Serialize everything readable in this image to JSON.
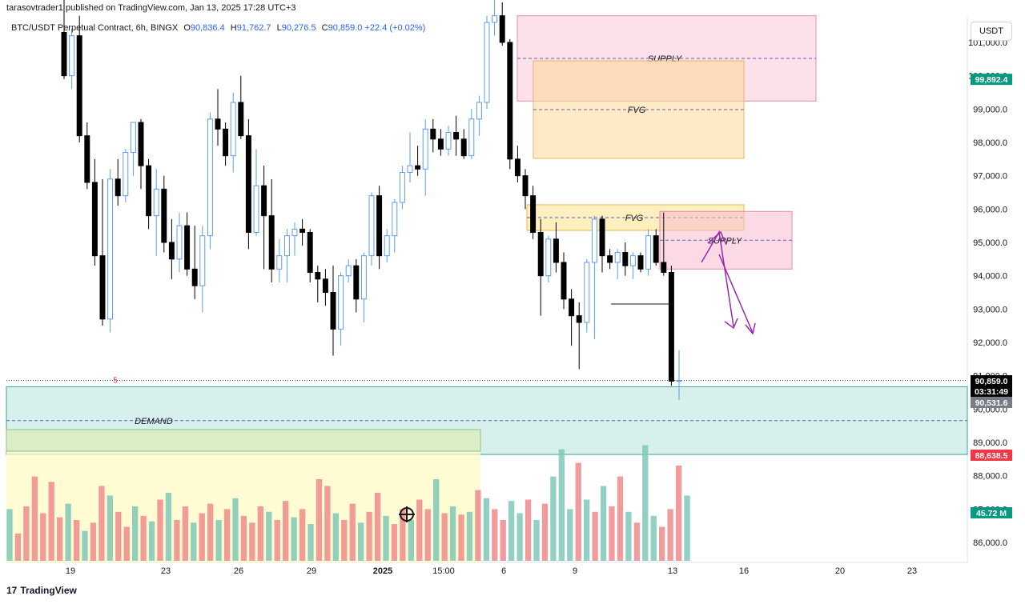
{
  "header": {
    "published_line": "tarasovtrader1 published on TradingView.com, Jan 13, 2025 17:28 UTC+3",
    "symbol_title": "BTC/USDT Perpetual Contract, 6h, BINGX",
    "o_label": "O",
    "o_value": "90,836.4",
    "h_label": "H",
    "h_value": "91,762.7",
    "l_label": "L",
    "l_value": "90,276.5",
    "c_label": "C",
    "c_value": "90,859.0",
    "change": "+22.4 (+0.02%)"
  },
  "currency_button": "USDT",
  "footer": {
    "logo": "17",
    "brand": "TradingView"
  },
  "colors": {
    "up": "#5b9cf6",
    "down": "#000000",
    "vol_up": "#7fc8b8",
    "vol_down": "#ef8b8b",
    "supply": "#f8bbd0",
    "fvg": "#fde9a8",
    "demand": "#b7e4dc",
    "arrow": "#9c27b0"
  },
  "chart_data": {
    "type": "candlestick",
    "y_axis_ticks": [
      "101,000.0",
      "100,000.0",
      "99,000.0",
      "98,000.0",
      "97,000.0",
      "96,000.0",
      "95,000.0",
      "94,000.0",
      "93,000.0",
      "92,000.0",
      "91,000.0",
      "90,000.0",
      "89,000.0",
      "88,000.0",
      "87,000.0",
      "86,000.0"
    ],
    "x_axis_ticks": [
      "19",
      "23",
      "26",
      "29",
      "2025",
      "15:00",
      "6",
      "9",
      "13",
      "16",
      "20",
      "23"
    ],
    "price_labels": [
      {
        "text": "99,892.4",
        "color": "#089981"
      },
      {
        "text": "90,859.0",
        "color": "#000000"
      },
      {
        "text": "03:31:49",
        "color": "#000000"
      },
      {
        "text": "90,531.6",
        "color": "#787b86"
      },
      {
        "text": "88,638.5",
        "color": "#f23645"
      },
      {
        "text": "45.72 M",
        "color": "#089981"
      }
    ],
    "zones": [
      {
        "label": "SUPPLY",
        "kind": "supply",
        "top": 101800,
        "bottom": 99240
      },
      {
        "label": "FVG",
        "kind": "fvg",
        "top": 100450,
        "bottom": 97520
      },
      {
        "label": "FVG",
        "kind": "fvg",
        "top": 96130,
        "bottom": 95360
      },
      {
        "label": "SUPPLY",
        "kind": "supply",
        "top": 95930,
        "bottom": 94200
      },
      {
        "label": "DEMAND",
        "kind": "demand",
        "top": 90670,
        "bottom": 88638
      }
    ],
    "marker_label": "5",
    "candles": [
      [
        101300,
        102500,
        99900,
        100000
      ],
      [
        100000,
        101400,
        99600,
        101200
      ],
      [
        101200,
        101800,
        98000,
        98200
      ],
      [
        98200,
        98600,
        96600,
        96800
      ],
      [
        96800,
        97500,
        94300,
        94600
      ],
      [
        94600,
        96900,
        92500,
        92700
      ],
      [
        92700,
        97200,
        92300,
        96900
      ],
      [
        96900,
        97500,
        96100,
        96400
      ],
      [
        96400,
        97800,
        96200,
        97700
      ],
      [
        97700,
        98600,
        97000,
        98600
      ],
      [
        98600,
        98700,
        96600,
        97300
      ],
      [
        97300,
        97500,
        95400,
        95800
      ],
      [
        95800,
        97200,
        94600,
        96600
      ],
      [
        96600,
        97000,
        94700,
        95000
      ],
      [
        95000,
        95700,
        93900,
        94500
      ],
      [
        94500,
        95900,
        94100,
        95500
      ],
      [
        95500,
        95900,
        94000,
        94200
      ],
      [
        94200,
        95500,
        93300,
        93700
      ],
      [
        93700,
        95500,
        92900,
        95200
      ],
      [
        95200,
        98900,
        94800,
        98700
      ],
      [
        98700,
        99600,
        97900,
        98400
      ],
      [
        98400,
        98600,
        97300,
        97600
      ],
      [
        97600,
        99500,
        97100,
        99200
      ],
      [
        99200,
        100000,
        98100,
        98200
      ],
      [
        98200,
        98700,
        94800,
        95300
      ],
      [
        95300,
        97800,
        95200,
        96700
      ],
      [
        96700,
        97300,
        94200,
        95800
      ],
      [
        95800,
        96900,
        93800,
        94200
      ],
      [
        94200,
        95100,
        93800,
        94600
      ],
      [
        94600,
        95400,
        93800,
        95200
      ],
      [
        95200,
        95600,
        94600,
        95400
      ],
      [
        95400,
        95700,
        94900,
        95300
      ],
      [
        95300,
        95400,
        93800,
        94100
      ],
      [
        94100,
        94300,
        93200,
        93900
      ],
      [
        93900,
        94200,
        93100,
        93500
      ],
      [
        93500,
        94300,
        91600,
        92400
      ],
      [
        92400,
        94100,
        91900,
        94000
      ],
      [
        94000,
        94500,
        93800,
        94300
      ],
      [
        94300,
        94500,
        92900,
        93300
      ],
      [
        93300,
        94700,
        92600,
        94600
      ],
      [
        94600,
        96500,
        94300,
        96400
      ],
      [
        96400,
        96700,
        94200,
        94600
      ],
      [
        94600,
        95400,
        94400,
        95200
      ],
      [
        95200,
        96300,
        94700,
        96200
      ],
      [
        96200,
        97300,
        96000,
        97100
      ],
      [
        97100,
        98300,
        96800,
        97300
      ],
      [
        97300,
        97900,
        97000,
        97200
      ],
      [
        97200,
        98700,
        96400,
        98400
      ],
      [
        98400,
        98700,
        97700,
        98100
      ],
      [
        98100,
        98400,
        97600,
        97800
      ],
      [
        97800,
        98500,
        97600,
        98300
      ],
      [
        98300,
        98800,
        97600,
        98100
      ],
      [
        98100,
        98400,
        97500,
        97600
      ],
      [
        97600,
        99000,
        97500,
        98700
      ],
      [
        98700,
        99400,
        98200,
        99200
      ],
      [
        99200,
        101800,
        99000,
        101600
      ],
      [
        101600,
        102600,
        101200,
        101800
      ],
      [
        101800,
        102200,
        100900,
        101000
      ],
      [
        101000,
        101100,
        97200,
        97500
      ],
      [
        97500,
        97900,
        96800,
        97000
      ],
      [
        97000,
        97200,
        96000,
        96400
      ],
      [
        96400,
        96700,
        95100,
        95300
      ],
      [
        95300,
        95700,
        92800,
        94000
      ],
      [
        94000,
        95200,
        93800,
        95100
      ],
      [
        95100,
        95600,
        94100,
        94400
      ],
      [
        94400,
        94700,
        93000,
        93300
      ],
      [
        93300,
        93600,
        91900,
        92800
      ],
      [
        92800,
        93200,
        91200,
        92600
      ],
      [
        92600,
        94500,
        92300,
        94400
      ],
      [
        94400,
        95800,
        92100,
        95700
      ],
      [
        95700,
        95800,
        94100,
        94600
      ],
      [
        94600,
        94800,
        94200,
        94400
      ],
      [
        94400,
        94800,
        93900,
        94700
      ],
      [
        94700,
        95000,
        94000,
        94300
      ],
      [
        94300,
        94700,
        93900,
        94600
      ],
      [
        94600,
        94700,
        94100,
        94200
      ],
      [
        94200,
        95400,
        94000,
        95200
      ],
      [
        95200,
        95400,
        94300,
        94400
      ],
      [
        94400,
        95900,
        94000,
        94100
      ],
      [
        94100,
        94300,
        90700,
        90836
      ],
      [
        90836,
        91762,
        90276,
        90859
      ]
    ],
    "volumes": [
      [
        0.38,
        1
      ],
      [
        0.2,
        0
      ],
      [
        0.4,
        0
      ],
      [
        0.62,
        0
      ],
      [
        0.35,
        0
      ],
      [
        0.58,
        0
      ],
      [
        0.32,
        0
      ],
      [
        0.42,
        1
      ],
      [
        0.3,
        0
      ],
      [
        0.22,
        1
      ],
      [
        0.28,
        0
      ],
      [
        0.55,
        0
      ],
      [
        0.48,
        1
      ],
      [
        0.36,
        0
      ],
      [
        0.25,
        0
      ],
      [
        0.4,
        1
      ],
      [
        0.33,
        0
      ],
      [
        0.29,
        1
      ],
      [
        0.45,
        0
      ],
      [
        0.5,
        1
      ],
      [
        0.3,
        0
      ],
      [
        0.4,
        0
      ],
      [
        0.28,
        1
      ],
      [
        0.35,
        0
      ],
      [
        0.42,
        0
      ],
      [
        0.3,
        1
      ],
      [
        0.38,
        0
      ],
      [
        0.46,
        1
      ],
      [
        0.33,
        0
      ],
      [
        0.28,
        0
      ],
      [
        0.4,
        0
      ],
      [
        0.36,
        1
      ],
      [
        0.3,
        0
      ],
      [
        0.44,
        0
      ],
      [
        0.32,
        1
      ],
      [
        0.38,
        0
      ],
      [
        0.27,
        1
      ],
      [
        0.6,
        0
      ],
      [
        0.55,
        0
      ],
      [
        0.35,
        1
      ],
      [
        0.3,
        0
      ],
      [
        0.42,
        0
      ],
      [
        0.28,
        1
      ],
      [
        0.36,
        0
      ],
      [
        0.5,
        0
      ],
      [
        0.33,
        1
      ],
      [
        0.27,
        0
      ],
      [
        0.38,
        0
      ],
      [
        0.3,
        1
      ],
      [
        0.45,
        0
      ],
      [
        0.38,
        0
      ],
      [
        0.6,
        1
      ],
      [
        0.35,
        0
      ],
      [
        0.4,
        1
      ],
      [
        0.34,
        0
      ],
      [
        0.36,
        1
      ],
      [
        0.52,
        0
      ],
      [
        0.46,
        1
      ],
      [
        0.38,
        0
      ],
      [
        0.3,
        0
      ],
      [
        0.44,
        1
      ],
      [
        0.35,
        1
      ],
      [
        0.45,
        0
      ],
      [
        0.3,
        1
      ],
      [
        0.42,
        0
      ],
      [
        0.62,
        1
      ],
      [
        0.82,
        1
      ],
      [
        0.38,
        1
      ],
      [
        0.72,
        0
      ],
      [
        0.45,
        1
      ],
      [
        0.36,
        0
      ],
      [
        0.55,
        1
      ],
      [
        0.4,
        0
      ],
      [
        0.62,
        0
      ],
      [
        0.36,
        1
      ],
      [
        0.28,
        0
      ],
      [
        0.85,
        1
      ],
      [
        0.33,
        1
      ],
      [
        0.25,
        0
      ],
      [
        0.38,
        0
      ],
      [
        0.7,
        0
      ],
      [
        0.48,
        1
      ]
    ],
    "volume_ticks": []
  }
}
